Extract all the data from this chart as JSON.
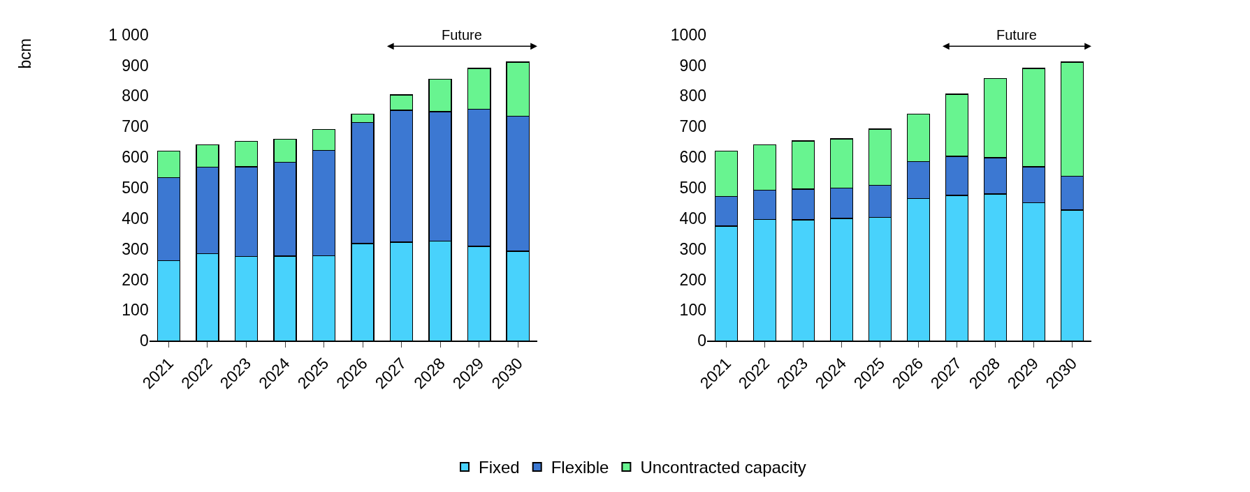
{
  "chart_data": [
    {
      "type": "bar",
      "stacked": true,
      "ylabel": "bcm",
      "categories": [
        "2021",
        "2022",
        "2023",
        "2024",
        "2025",
        "2026",
        "2027",
        "2028",
        "2029",
        "2030"
      ],
      "series": [
        {
          "name": "Fixed",
          "color": "#48d2fc",
          "values": [
            262,
            285,
            275,
            277,
            278,
            318,
            322,
            325,
            308,
            292
          ]
        },
        {
          "name": "Flexible",
          "color": "#3c78d2",
          "values": [
            271,
            282,
            293,
            306,
            344,
            395,
            431,
            424,
            448,
            442
          ]
        },
        {
          "name": "Uncontracted capacity",
          "color": "#68f490",
          "values": [
            87,
            73,
            84,
            75,
            68,
            27,
            50,
            106,
            134,
            176
          ]
        }
      ],
      "ylim": [
        0,
        1000
      ],
      "yticks": [
        0,
        100,
        200,
        300,
        400,
        500,
        600,
        700,
        800,
        900,
        {
          "value": 1000,
          "label": "1 000"
        }
      ],
      "annotations": [
        "Future"
      ],
      "legend": "bottom"
    },
    {
      "type": "bar",
      "stacked": true,
      "categories": [
        "2021",
        "2022",
        "2023",
        "2024",
        "2025",
        "2026",
        "2027",
        "2028",
        "2029",
        "2030"
      ],
      "series": [
        {
          "name": "Fixed",
          "color": "#48d2fc",
          "values": [
            375,
            396,
            395,
            400,
            403,
            465,
            475,
            479,
            451,
            427
          ]
        },
        {
          "name": "Flexible",
          "color": "#3c78d2",
          "values": [
            96,
            96,
            100,
            99,
            105,
            121,
            128,
            119,
            117,
            111
          ]
        },
        {
          "name": "Uncontracted capacity",
          "color": "#68f490",
          "values": [
            149,
            148,
            158,
            160,
            183,
            154,
            202,
            259,
            322,
            372
          ]
        }
      ],
      "ylim": [
        0,
        1000
      ],
      "yticks": [
        0,
        100,
        200,
        300,
        400,
        500,
        600,
        700,
        800,
        900,
        1000
      ],
      "annotations": [
        "Future"
      ],
      "legend": "bottom"
    }
  ]
}
